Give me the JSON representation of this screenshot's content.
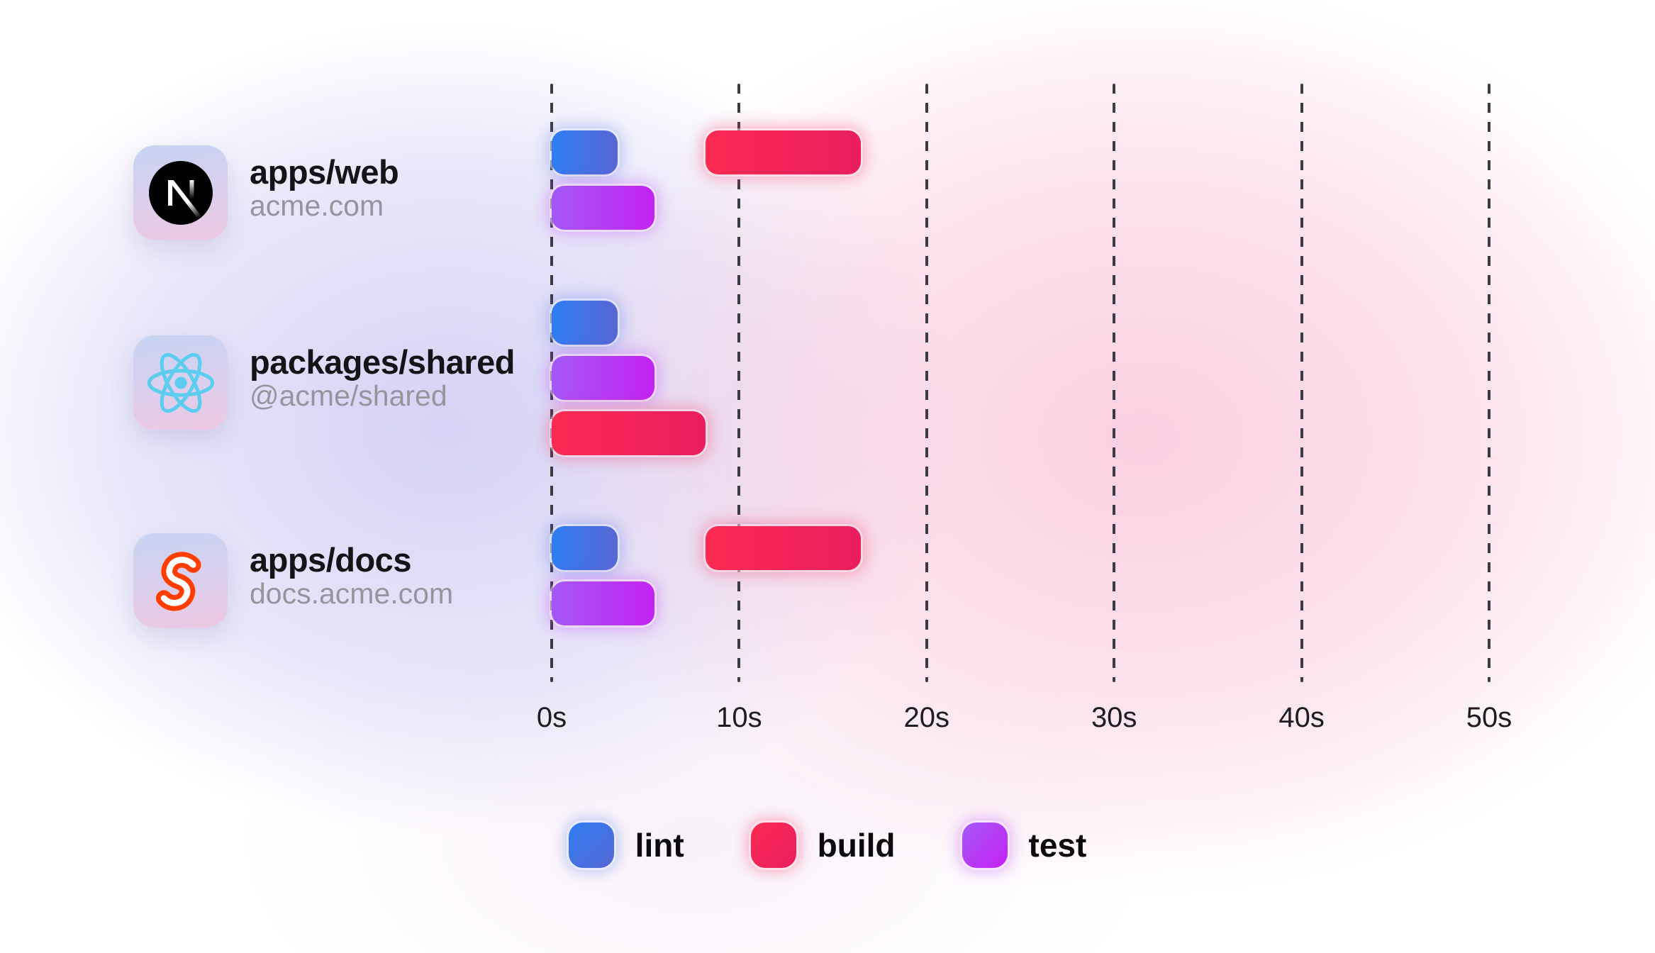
{
  "chart_data": {
    "type": "gantt",
    "title": "",
    "unit": "seconds",
    "axis": {
      "ticks": [
        "0s",
        "10s",
        "20s",
        "30s",
        "40s",
        "50s"
      ],
      "values": [
        0,
        10,
        20,
        30,
        40,
        50
      ],
      "min": 0,
      "max": 50,
      "gridlines": "dashed-vertical"
    },
    "legend": [
      {
        "task": "lint",
        "label": "lint"
      },
      {
        "task": "build",
        "label": "build"
      },
      {
        "task": "test",
        "label": "test"
      }
    ],
    "task_colors": {
      "lint": {
        "from": "#2f7df3",
        "to": "#5767d3",
        "glow": "rgba(80,115,230,0.38)"
      },
      "build": {
        "from": "#fb2a52",
        "to": "#e91e5f",
        "glow": "rgba(240,45,95,0.38)"
      },
      "test": {
        "from": "#a558f7",
        "to": "#c322f2",
        "glow": "rgba(185,60,245,0.38)"
      }
    },
    "rows": [
      {
        "title": "apps/web",
        "subtitle": "acme.com",
        "icon": "nextjs-icon",
        "lanes": [
          [
            {
              "task": "lint",
              "start": 0,
              "end": 3.5
            },
            {
              "task": "build",
              "start": 8.2,
              "end": 16.5
            }
          ],
          [
            {
              "task": "test",
              "start": 0,
              "end": 5.5
            }
          ]
        ]
      },
      {
        "title": "packages/shared",
        "subtitle": "@acme/shared",
        "icon": "react-icon",
        "lanes": [
          [
            {
              "task": "lint",
              "start": 0,
              "end": 3.5
            }
          ],
          [
            {
              "task": "test",
              "start": 0,
              "end": 5.5
            }
          ],
          [
            {
              "task": "build",
              "start": 0,
              "end": 8.2
            }
          ]
        ]
      },
      {
        "title": "apps/docs",
        "subtitle": "docs.acme.com",
        "icon": "svelte-icon",
        "lanes": [
          [
            {
              "task": "lint",
              "start": 0,
              "end": 3.5
            },
            {
              "task": "build",
              "start": 8.2,
              "end": 16.5
            }
          ],
          [
            {
              "task": "test",
              "start": 0,
              "end": 5.5
            }
          ]
        ]
      }
    ],
    "background_colors": {
      "base": "#FFFFFF",
      "lavender_blob": "#CECAF3",
      "pink_blob": "#FACDDF"
    }
  }
}
